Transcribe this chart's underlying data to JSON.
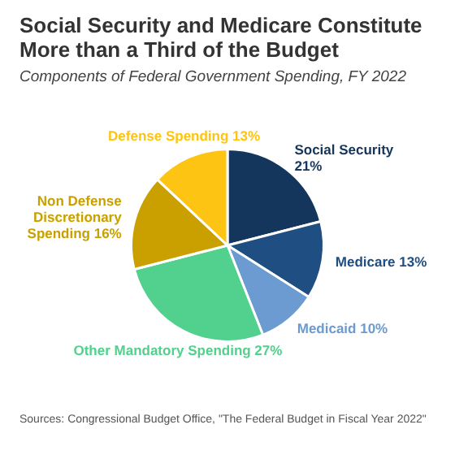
{
  "chart_data": {
    "type": "pie",
    "title": "Social Security and Medicare Constitute More than a Third of the Budget",
    "subtitle": "Components of Federal Government Spending, FY 2022",
    "categories": [
      "Social Security",
      "Medicare",
      "Medicaid",
      "Other Mandatory Spending",
      "Non Defense Discretionary Spending",
      "Defense Spending"
    ],
    "values": [
      21,
      13,
      10,
      27,
      16,
      13
    ],
    "value_labels": [
      "21%",
      "13%",
      "10%",
      "27%",
      "16%",
      "13%"
    ],
    "colors": [
      "#14365d",
      "#1f4e82",
      "#6b9bd1",
      "#52d08d",
      "#c9a000",
      "#fdc414"
    ],
    "legend": false,
    "annotations": [
      "Sources: Congressional Budget Office, \"The Federal Budget in Fiscal Year 2022\""
    ]
  }
}
